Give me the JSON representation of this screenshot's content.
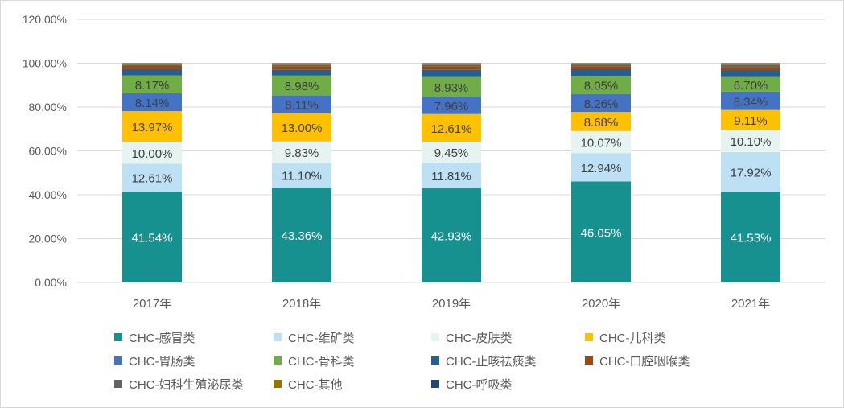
{
  "chart_data": {
    "type": "bar",
    "stacked": true,
    "categories": [
      "2017年",
      "2018年",
      "2019年",
      "2020年",
      "2021年"
    ],
    "ylim": [
      0,
      120
    ],
    "yticks": [
      "0.00%",
      "20.00%",
      "40.00%",
      "60.00%",
      "80.00%",
      "100.00%",
      "120.00%"
    ],
    "grid": true,
    "legend_position": "bottom",
    "series": [
      {
        "name": "CHC-感冒类",
        "color": "#17918F",
        "values": [
          41.54,
          43.36,
          42.93,
          46.05,
          41.53
        ],
        "labels": [
          "41.54%",
          "43.36%",
          "42.93%",
          "46.05%",
          "41.53%"
        ]
      },
      {
        "name": "CHC-维矿类",
        "color": "#BDE0F5",
        "values": [
          12.61,
          11.1,
          11.81,
          12.94,
          17.92
        ],
        "labels": [
          "12.61%",
          "11.10%",
          "11.81%",
          "12.94%",
          "17.92%"
        ]
      },
      {
        "name": "CHC-皮肤类",
        "color": "#E6F4F1",
        "values": [
          10.0,
          9.83,
          9.45,
          10.07,
          10.1
        ],
        "labels": [
          "10.00%",
          "9.83%",
          "9.45%",
          "10.07%",
          "10.10%"
        ]
      },
      {
        "name": "CHC-儿科类",
        "color": "#FFC000",
        "values": [
          13.97,
          13.0,
          12.61,
          8.68,
          9.11
        ],
        "labels": [
          "13.97%",
          "13.00%",
          "12.61%",
          "8.68%",
          "9.11%"
        ]
      },
      {
        "name": "CHC-胃肠类",
        "color": "#4472C4",
        "values": [
          8.14,
          8.11,
          7.96,
          8.26,
          8.34
        ],
        "labels": [
          "8.14%",
          "8.11%",
          "7.96%",
          "8.26%",
          "8.34%"
        ]
      },
      {
        "name": "CHC-骨科类",
        "color": "#70AD47",
        "values": [
          8.17,
          8.98,
          8.93,
          8.05,
          6.7
        ],
        "labels": [
          "8.17%",
          "8.98%",
          "8.93%",
          "8.05%",
          "6.70%"
        ]
      },
      {
        "name": "CHC-止咳祛痰类",
        "color": "#255E91",
        "values": [
          2.8,
          2.6,
          3.3,
          3.2,
          3.0
        ]
      },
      {
        "name": "CHC-口腔咽喉类",
        "color": "#9E480E",
        "values": [
          1.3,
          1.6,
          1.5,
          1.4,
          1.3
        ]
      },
      {
        "name": "CHC-妇科生殖泌尿类",
        "color": "#636363",
        "values": [
          0.6,
          0.6,
          0.7,
          0.6,
          1.2
        ]
      },
      {
        "name": "CHC-其他",
        "color": "#997300",
        "values": [
          0.5,
          0.5,
          0.5,
          0.45,
          0.5
        ]
      },
      {
        "name": "CHC-呼吸类",
        "color": "#264478",
        "values": [
          0.37,
          0.32,
          0.31,
          0.3,
          0.3
        ]
      }
    ]
  }
}
